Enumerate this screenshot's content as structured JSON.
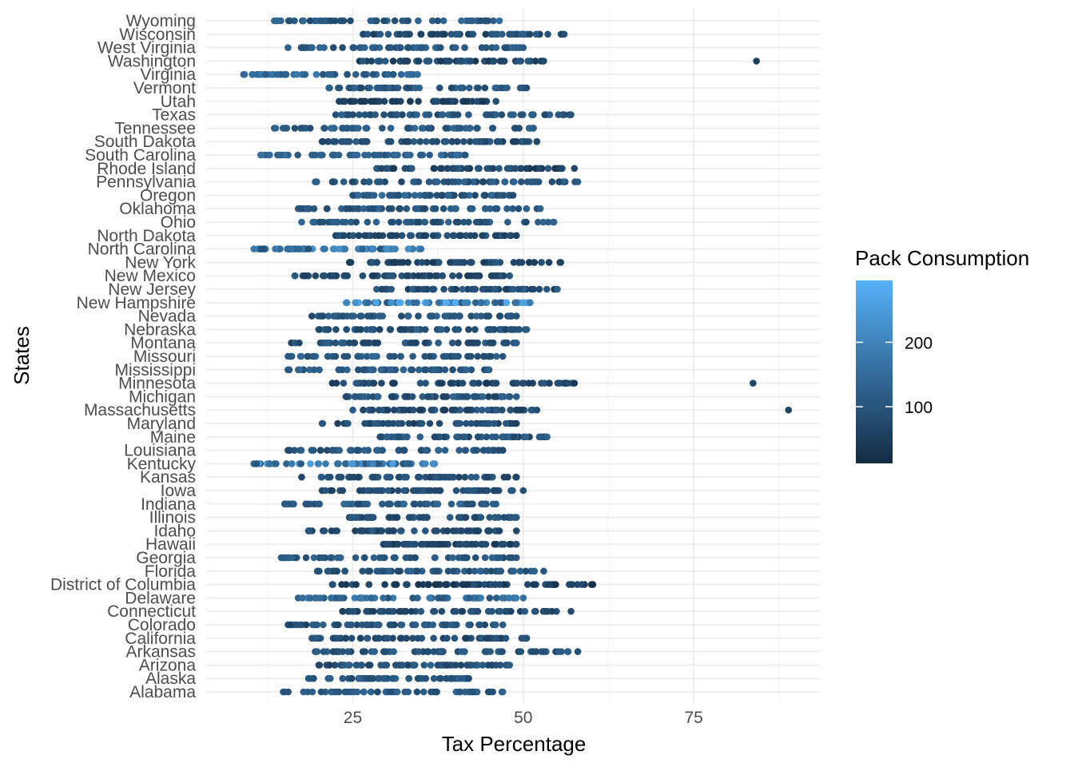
{
  "chart_data": {
    "type": "scatter",
    "xlabel": "Tax Percentage",
    "ylabel": "States",
    "xlim": [
      3.5,
      93.5
    ],
    "x_ticks": [
      25,
      50,
      75
    ],
    "grid": true,
    "legend": {
      "title": "Pack Consumption",
      "placement": "right",
      "type": "colorbar",
      "range": [
        12,
        296
      ],
      "ticks": [
        100,
        200
      ],
      "color_low": "#132b43",
      "color_high": "#56b1f7"
    },
    "categories": [
      "Alabama",
      "Alaska",
      "Arizona",
      "Arkansas",
      "California",
      "Colorado",
      "Connecticut",
      "Delaware",
      "District of Columbia",
      "Florida",
      "Georgia",
      "Hawaii",
      "Idaho",
      "Illinois",
      "Indiana",
      "Iowa",
      "Kansas",
      "Kentucky",
      "Louisiana",
      "Maine",
      "Maryland",
      "Massachusetts",
      "Michigan",
      "Minnesota",
      "Mississippi",
      "Missouri",
      "Montana",
      "Nebraska",
      "Nevada",
      "New Hampshire",
      "New Jersey",
      "New Mexico",
      "New York",
      "North Carolina",
      "North Dakota",
      "Ohio",
      "Oklahoma",
      "Oregon",
      "Pennsylvania",
      "Rhode Island",
      "South Carolina",
      "South Dakota",
      "Tennessee",
      "Texas",
      "Utah",
      "Vermont",
      "Virginia",
      "Washington",
      "West Virginia",
      "Wisconsin",
      "Wyoming"
    ],
    "series": [
      {
        "state": "Alabama",
        "range": [
          14.8,
          47.0
        ],
        "color_range": [
          80,
          140
        ]
      },
      {
        "state": "Alaska",
        "range": [
          18.5,
          42.0
        ],
        "color_range": [
          70,
          135
        ]
      },
      {
        "state": "Arizona",
        "range": [
          20.0,
          48.0
        ],
        "color_range": [
          60,
          125
        ]
      },
      {
        "state": "Arkansas",
        "range": [
          19.5,
          58.0
        ],
        "color_range": [
          70,
          130
        ]
      },
      {
        "state": "California",
        "range": [
          19.0,
          50.5
        ],
        "color_range": [
          50,
          115
        ]
      },
      {
        "state": "Colorado",
        "range": [
          15.5,
          47.0
        ],
        "color_range": [
          60,
          125
        ]
      },
      {
        "state": "Connecticut",
        "range": [
          23.5,
          57.0
        ],
        "color_range": [
          55,
          115
        ]
      },
      {
        "state": "Delaware",
        "range": [
          17.0,
          50.0
        ],
        "color_range": [
          100,
          185
        ]
      },
      {
        "state": "District of Columbia",
        "range": [
          22.0,
          60.0
        ],
        "color_range": [
          30,
          100
        ],
        "extra": [
          [
            60.2,
            25
          ]
        ]
      },
      {
        "state": "Florida",
        "range": [
          19.8,
          53.0
        ],
        "color_range": [
          75,
          130
        ]
      },
      {
        "state": "Georgia",
        "range": [
          14.5,
          49.0
        ],
        "color_range": [
          80,
          135
        ]
      },
      {
        "state": "Hawaii",
        "range": [
          29.5,
          49.0
        ],
        "color_range": [
          40,
          95
        ]
      },
      {
        "state": "Idaho",
        "range": [
          18.5,
          49.0
        ],
        "color_range": [
          50,
          110
        ]
      },
      {
        "state": "Illinois",
        "range": [
          24.5,
          49.0
        ],
        "color_range": [
          55,
          115
        ]
      },
      {
        "state": "Indiana",
        "range": [
          15.0,
          46.0
        ],
        "color_range": [
          80,
          150
        ]
      },
      {
        "state": "Iowa",
        "range": [
          20.5,
          50.0
        ],
        "color_range": [
          55,
          115
        ]
      },
      {
        "state": "Kansas",
        "range": [
          17.5,
          49.0
        ],
        "color_range": [
          60,
          120
        ]
      },
      {
        "state": "Kentucky",
        "range": [
          10.5,
          37.0
        ],
        "color_range": [
          95,
          260
        ]
      },
      {
        "state": "Louisiana",
        "range": [
          15.5,
          47.0
        ],
        "color_range": [
          75,
          135
        ]
      },
      {
        "state": "Maine",
        "range": [
          29.0,
          53.5
        ],
        "color_range": [
          60,
          130
        ]
      },
      {
        "state": "Maryland",
        "range": [
          20.5,
          49.0
        ],
        "color_range": [
          45,
          110
        ]
      },
      {
        "state": "Massachusetts",
        "range": [
          25.0,
          52.0
        ],
        "color_range": [
          40,
          120
        ],
        "extra": [
          [
            88.9,
            60
          ]
        ]
      },
      {
        "state": "Michigan",
        "range": [
          24.0,
          49.0
        ],
        "color_range": [
          60,
          130
        ]
      },
      {
        "state": "Minnesota",
        "range": [
          22.0,
          57.5
        ],
        "color_range": [
          40,
          110
        ],
        "extra": [
          [
            83.7,
            70
          ]
        ]
      },
      {
        "state": "Mississippi",
        "range": [
          15.5,
          45.0
        ],
        "color_range": [
          80,
          140
        ]
      },
      {
        "state": "Missouri",
        "range": [
          15.5,
          47.0
        ],
        "color_range": [
          80,
          145
        ]
      },
      {
        "state": "Montana",
        "range": [
          16.0,
          49.0
        ],
        "color_range": [
          60,
          125
        ]
      },
      {
        "state": "Nebraska",
        "range": [
          20.0,
          50.5
        ],
        "color_range": [
          60,
          125
        ]
      },
      {
        "state": "Nevada",
        "range": [
          19.0,
          49.0
        ],
        "color_range": [
          70,
          135
        ]
      },
      {
        "state": "New Hampshire",
        "range": [
          24.0,
          51.0
        ],
        "color_range": [
          100,
          296
        ]
      },
      {
        "state": "New Jersey",
        "range": [
          28.5,
          55.0
        ],
        "color_range": [
          45,
          120
        ]
      },
      {
        "state": "New Mexico",
        "range": [
          16.5,
          48.0
        ],
        "color_range": [
          45,
          110
        ]
      },
      {
        "state": "New York",
        "range": [
          24.5,
          55.5
        ],
        "color_range": [
          40,
          115
        ]
      },
      {
        "state": "North Carolina",
        "range": [
          10.5,
          35.0
        ],
        "color_range": [
          95,
          230
        ]
      },
      {
        "state": "North Dakota",
        "range": [
          22.5,
          49.0
        ],
        "color_range": [
          50,
          110
        ]
      },
      {
        "state": "Ohio",
        "range": [
          17.5,
          54.5
        ],
        "color_range": [
          70,
          135
        ]
      },
      {
        "state": "Oklahoma",
        "range": [
          17.0,
          52.5
        ],
        "color_range": [
          70,
          135
        ]
      },
      {
        "state": "Oregon",
        "range": [
          25.0,
          48.5
        ],
        "color_range": [
          70,
          155
        ]
      },
      {
        "state": "Pennsylvania",
        "range": [
          19.5,
          58.0
        ],
        "color_range": [
          70,
          135
        ]
      },
      {
        "state": "Rhode Island",
        "range": [
          28.5,
          57.5
        ],
        "color_range": [
          35,
          115
        ]
      },
      {
        "state": "South Carolina",
        "range": [
          11.5,
          41.5
        ],
        "color_range": [
          100,
          160
        ]
      },
      {
        "state": "South Dakota",
        "range": [
          20.5,
          52.0
        ],
        "color_range": [
          55,
          115
        ]
      },
      {
        "state": "Tennessee",
        "range": [
          13.5,
          51.5
        ],
        "color_range": [
          80,
          145
        ]
      },
      {
        "state": "Texas",
        "range": [
          22.5,
          57.0
        ],
        "color_range": [
          75,
          135
        ]
      },
      {
        "state": "Utah",
        "range": [
          23.0,
          46.0
        ],
        "color_range": [
          35,
          85
        ]
      },
      {
        "state": "Vermont",
        "range": [
          21.5,
          50.5
        ],
        "color_range": [
          70,
          135
        ]
      },
      {
        "state": "Virginia",
        "range": [
          9.0,
          34.5
        ],
        "color_range": [
          100,
          200
        ]
      },
      {
        "state": "Washington",
        "range": [
          26.0,
          53.0
        ],
        "color_range": [
          40,
          110
        ],
        "extra": [
          [
            84.2,
            55
          ]
        ]
      },
      {
        "state": "West Virginia",
        "range": [
          15.5,
          50.0
        ],
        "color_range": [
          80,
          145
        ]
      },
      {
        "state": "Wisconsin",
        "range": [
          26.5,
          56.0
        ],
        "color_range": [
          50,
          120
        ]
      },
      {
        "state": "Wyoming",
        "range": [
          13.5,
          46.5
        ],
        "color_range": [
          80,
          150
        ]
      }
    ]
  }
}
